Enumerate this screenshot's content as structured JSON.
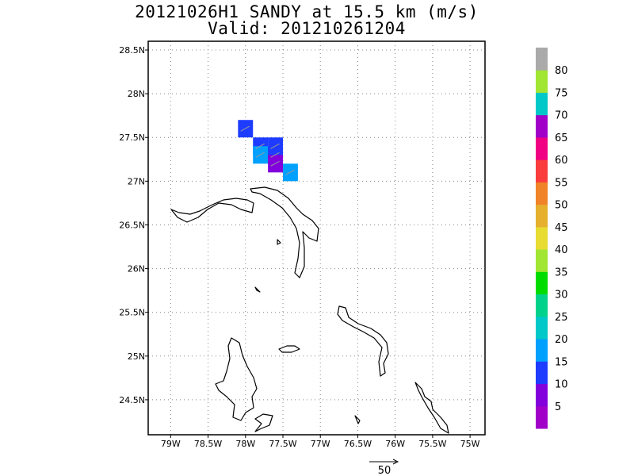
{
  "title": {
    "line1": "20121026H1 SANDY at 15.5 km (m/s)",
    "line2": "Valid: 201210261204"
  },
  "map": {
    "lon_range": [
      -79.3,
      -74.8
    ],
    "lat_range": [
      24.1,
      28.6
    ],
    "lon_ticks": [
      {
        "value": -79,
        "label": "79W"
      },
      {
        "value": -78.5,
        "label": "78.5W"
      },
      {
        "value": -78,
        "label": "78W"
      },
      {
        "value": -77.5,
        "label": "77.5W"
      },
      {
        "value": -77,
        "label": "77W"
      },
      {
        "value": -76.5,
        "label": "76.5W"
      },
      {
        "value": -76,
        "label": "76W"
      },
      {
        "value": -75.5,
        "label": "75.5W"
      },
      {
        "value": -75,
        "label": "75W"
      }
    ],
    "lat_ticks": [
      {
        "value": 24.5,
        "label": "24.5N"
      },
      {
        "value": 25,
        "label": "25N"
      },
      {
        "value": 25.5,
        "label": "25.5N"
      },
      {
        "value": 26,
        "label": "26N"
      },
      {
        "value": 26.5,
        "label": "26.5N"
      },
      {
        "value": 27,
        "label": "27N"
      },
      {
        "value": 27.5,
        "label": "27.5N"
      },
      {
        "value": 28,
        "label": "28N"
      },
      {
        "value": 28.5,
        "label": "28.5N"
      }
    ],
    "grid": true
  },
  "wind_cells": [
    {
      "lon": -78.0,
      "lat": 27.6,
      "speed": 12
    },
    {
      "lon": -77.8,
      "lat": 27.4,
      "speed": 13
    },
    {
      "lon": -77.6,
      "lat": 27.4,
      "speed": 12
    },
    {
      "lon": -77.8,
      "lat": 27.3,
      "speed": 18
    },
    {
      "lon": -77.6,
      "lat": 27.3,
      "speed": 13
    },
    {
      "lon": -77.6,
      "lat": 27.2,
      "speed": 8
    },
    {
      "lon": -77.4,
      "lat": 27.1,
      "speed": 17
    }
  ],
  "colorbar": {
    "labels": [
      "5",
      "10",
      "15",
      "20",
      "25",
      "30",
      "35",
      "40",
      "45",
      "50",
      "55",
      "60",
      "65",
      "70",
      "75",
      "80"
    ],
    "colors": [
      "#a000c8",
      "#8200dc",
      "#1e3cff",
      "#00a0ff",
      "#00c8c8",
      "#00d28c",
      "#00dc00",
      "#a0e632",
      "#e6dc32",
      "#e6af2d",
      "#f08228",
      "#fa3c3c",
      "#f00082",
      "#a000c8",
      "#00c8c8",
      "#a0e632",
      "#aaaaaa"
    ]
  },
  "reference_vector": {
    "label": "50"
  }
}
